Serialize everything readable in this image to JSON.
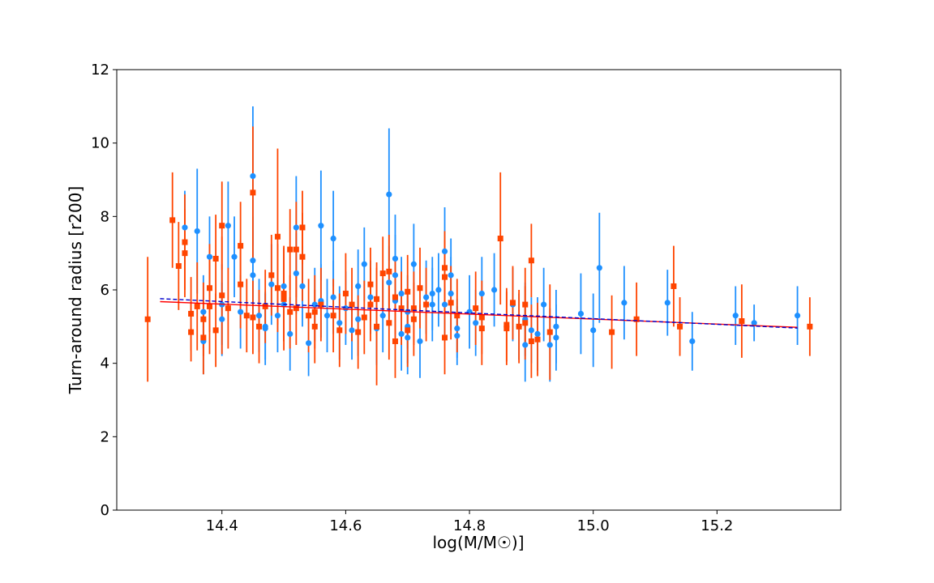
{
  "chart_data": {
    "type": "scatter",
    "title": "",
    "xlabel": "log(M/M☉)]",
    "ylabel": "Turn-around radius [r200]",
    "xlim": [
      14.23,
      15.4
    ],
    "ylim": [
      0,
      12
    ],
    "x_ticks": [
      "14.4",
      "14.6",
      "14.8",
      "15.0",
      "15.2"
    ],
    "y_ticks": [
      "0",
      "2",
      "4",
      "6",
      "8",
      "10",
      "12"
    ],
    "grid": false,
    "legend": "none",
    "series": [
      {
        "color": "#1e90ff",
        "marker": "circle",
        "points": [
          [
            14.34,
            7.7,
            1.0
          ],
          [
            14.36,
            7.6,
            1.7
          ],
          [
            14.37,
            5.4,
            1.0
          ],
          [
            14.37,
            4.6,
            0.9
          ],
          [
            14.38,
            6.9,
            1.1
          ],
          [
            14.4,
            5.6,
            1.1
          ],
          [
            14.4,
            5.2,
            1.0
          ],
          [
            14.41,
            7.75,
            1.2
          ],
          [
            14.42,
            6.9,
            1.1
          ],
          [
            14.43,
            5.4,
            1.0
          ],
          [
            14.45,
            9.1,
            1.9
          ],
          [
            14.45,
            6.8,
            1.2
          ],
          [
            14.45,
            6.4,
            1.2
          ],
          [
            14.46,
            5.3,
            1.0
          ],
          [
            14.47,
            4.95,
            1.0
          ],
          [
            14.47,
            5.0,
            0.9
          ],
          [
            14.48,
            6.15,
            1.1
          ],
          [
            14.49,
            5.3,
            1.0
          ],
          [
            14.5,
            5.6,
            1.0
          ],
          [
            14.5,
            6.1,
            1.0
          ],
          [
            14.51,
            4.8,
            1.0
          ],
          [
            14.52,
            7.7,
            1.4
          ],
          [
            14.52,
            6.45,
            1.1
          ],
          [
            14.53,
            6.1,
            1.1
          ],
          [
            14.54,
            4.55,
            0.9
          ],
          [
            14.55,
            5.6,
            1.0
          ],
          [
            14.56,
            5.7,
            1.0
          ],
          [
            14.56,
            7.75,
            1.5
          ],
          [
            14.57,
            5.3,
            1.0
          ],
          [
            14.58,
            7.4,
            1.3
          ],
          [
            14.58,
            5.8,
            1.0
          ],
          [
            14.59,
            5.1,
            1.0
          ],
          [
            14.6,
            5.5,
            1.0
          ],
          [
            14.61,
            4.9,
            0.8
          ],
          [
            14.62,
            6.1,
            1.0
          ],
          [
            14.62,
            5.2,
            1.0
          ],
          [
            14.63,
            6.7,
            1.0
          ],
          [
            14.64,
            5.8,
            1.0
          ],
          [
            14.65,
            5.0,
            1.0
          ],
          [
            14.65,
            4.95,
            1.0
          ],
          [
            14.66,
            5.3,
            1.0
          ],
          [
            14.67,
            8.6,
            1.8
          ],
          [
            14.67,
            6.2,
            1.0
          ],
          [
            14.68,
            6.4,
            1.1
          ],
          [
            14.68,
            6.85,
            1.2
          ],
          [
            14.68,
            5.7,
            1.0
          ],
          [
            14.69,
            5.9,
            1.0
          ],
          [
            14.69,
            4.8,
            1.0
          ],
          [
            14.7,
            5.4,
            1.0
          ],
          [
            14.7,
            4.7,
            1.0
          ],
          [
            14.7,
            5.0,
            1.0
          ],
          [
            14.71,
            6.7,
            1.1
          ],
          [
            14.72,
            4.6,
            1.0
          ],
          [
            14.73,
            5.8,
            1.0
          ],
          [
            14.74,
            5.9,
            1.0
          ],
          [
            14.74,
            5.6,
            1.0
          ],
          [
            14.75,
            6.0,
            1.0
          ],
          [
            14.76,
            7.05,
            1.2
          ],
          [
            14.76,
            5.6,
            1.0
          ],
          [
            14.77,
            6.4,
            1.0
          ],
          [
            14.77,
            5.9,
            1.0
          ],
          [
            14.78,
            4.75,
            0.8
          ],
          [
            14.78,
            4.95,
            0.8
          ],
          [
            14.8,
            5.4,
            1.0
          ],
          [
            14.81,
            5.1,
            0.9
          ],
          [
            14.82,
            5.9,
            1.0
          ],
          [
            14.84,
            6.0,
            1.0
          ],
          [
            14.87,
            5.6,
            1.0
          ],
          [
            14.88,
            5.0,
            0.9
          ],
          [
            14.89,
            4.5,
            1.0
          ],
          [
            14.89,
            5.2,
            1.0
          ],
          [
            14.9,
            4.9,
            0.9
          ],
          [
            14.91,
            4.8,
            1.0
          ],
          [
            14.92,
            5.6,
            1.0
          ],
          [
            14.93,
            4.5,
            1.0
          ],
          [
            14.94,
            5.0,
            1.0
          ],
          [
            14.94,
            4.7,
            0.9
          ],
          [
            14.98,
            5.35,
            1.1
          ],
          [
            15.0,
            4.9,
            1.0
          ],
          [
            15.01,
            6.6,
            1.5
          ],
          [
            15.05,
            5.65,
            1.0
          ],
          [
            15.12,
            5.65,
            0.9
          ],
          [
            15.16,
            4.6,
            0.8
          ],
          [
            15.23,
            5.3,
            0.8
          ],
          [
            15.26,
            5.1,
            0.5
          ],
          [
            15.33,
            5.3,
            0.8
          ]
        ]
      },
      {
        "color": "#ff4500",
        "marker": "square",
        "points": [
          [
            14.28,
            5.2,
            1.7
          ],
          [
            14.32,
            7.9,
            1.3
          ],
          [
            14.33,
            6.65,
            1.2
          ],
          [
            14.34,
            7.3,
            1.3
          ],
          [
            14.34,
            7.0,
            1.2
          ],
          [
            14.35,
            4.85,
            0.8
          ],
          [
            14.35,
            5.35,
            1.0
          ],
          [
            14.36,
            5.55,
            1.2
          ],
          [
            14.37,
            4.7,
            1.0
          ],
          [
            14.37,
            5.2,
            1.0
          ],
          [
            14.38,
            6.05,
            1.2
          ],
          [
            14.38,
            5.55,
            1.3
          ],
          [
            14.39,
            4.9,
            1.0
          ],
          [
            14.39,
            6.85,
            1.2
          ],
          [
            14.4,
            7.75,
            1.2
          ],
          [
            14.4,
            5.85,
            1.6
          ],
          [
            14.41,
            5.5,
            1.1
          ],
          [
            14.43,
            7.2,
            1.2
          ],
          [
            14.43,
            6.15,
            1.2
          ],
          [
            14.44,
            5.3,
            1.0
          ],
          [
            14.45,
            8.65,
            1.8
          ],
          [
            14.45,
            5.25,
            1.0
          ],
          [
            14.46,
            5.0,
            1.0
          ],
          [
            14.47,
            5.55,
            1.0
          ],
          [
            14.48,
            6.4,
            1.1
          ],
          [
            14.49,
            7.45,
            2.4
          ],
          [
            14.49,
            6.05,
            1.2
          ],
          [
            14.5,
            5.9,
            1.3
          ],
          [
            14.5,
            5.75,
            1.4
          ],
          [
            14.51,
            5.4,
            1.0
          ],
          [
            14.51,
            7.1,
            1.1
          ],
          [
            14.52,
            7.1,
            1.3
          ],
          [
            14.52,
            5.5,
            1.0
          ],
          [
            14.53,
            7.7,
            1.0
          ],
          [
            14.53,
            6.9,
            1.2
          ],
          [
            14.54,
            5.3,
            1.0
          ],
          [
            14.55,
            5.0,
            1.0
          ],
          [
            14.55,
            5.4,
            1.0
          ],
          [
            14.56,
            5.6,
            1.0
          ],
          [
            14.58,
            5.3,
            1.0
          ],
          [
            14.59,
            4.9,
            1.0
          ],
          [
            14.6,
            5.9,
            1.1
          ],
          [
            14.61,
            5.6,
            1.0
          ],
          [
            14.62,
            4.85,
            1.0
          ],
          [
            14.63,
            5.25,
            1.0
          ],
          [
            14.64,
            6.15,
            1.0
          ],
          [
            14.64,
            5.6,
            1.0
          ],
          [
            14.65,
            5.75,
            1.0
          ],
          [
            14.65,
            5.0,
            1.6
          ],
          [
            14.66,
            6.45,
            1.0
          ],
          [
            14.67,
            5.1,
            1.0
          ],
          [
            14.67,
            6.5,
            1.0
          ],
          [
            14.68,
            5.8,
            1.0
          ],
          [
            14.68,
            4.6,
            1.0
          ],
          [
            14.69,
            5.5,
            1.0
          ],
          [
            14.7,
            5.95,
            1.0
          ],
          [
            14.7,
            4.9,
            1.0
          ],
          [
            14.71,
            5.2,
            1.0
          ],
          [
            14.71,
            5.5,
            1.0
          ],
          [
            14.72,
            6.05,
            1.1
          ],
          [
            14.73,
            5.6,
            1.0
          ],
          [
            14.76,
            6.6,
            1.0
          ],
          [
            14.76,
            6.35,
            1.0
          ],
          [
            14.76,
            4.7,
            1.0
          ],
          [
            14.77,
            5.65,
            1.0
          ],
          [
            14.78,
            5.3,
            1.0
          ],
          [
            14.81,
            5.5,
            1.0
          ],
          [
            14.82,
            4.95,
            1.0
          ],
          [
            14.82,
            5.25,
            1.0
          ],
          [
            14.85,
            7.4,
            1.8
          ],
          [
            14.86,
            5.05,
            1.0
          ],
          [
            14.86,
            4.95,
            1.0
          ],
          [
            14.87,
            5.65,
            1.0
          ],
          [
            14.88,
            5.0,
            1.0
          ],
          [
            14.89,
            5.6,
            1.0
          ],
          [
            14.89,
            5.1,
            1.0
          ],
          [
            14.9,
            6.8,
            1.0
          ],
          [
            14.9,
            4.6,
            1.0
          ],
          [
            14.91,
            4.65,
            1.0
          ],
          [
            14.93,
            4.85,
            1.3
          ],
          [
            15.03,
            4.85,
            1.0
          ],
          [
            15.07,
            5.2,
            1.0
          ],
          [
            15.13,
            6.1,
            1.1
          ],
          [
            15.14,
            5.0,
            0.8
          ],
          [
            15.24,
            5.15,
            1.0
          ],
          [
            15.35,
            5.0,
            0.8
          ]
        ]
      }
    ],
    "fit_lines": [
      {
        "color": "#ff0000",
        "style": "solid",
        "x": [
          14.3,
          15.33
        ],
        "y": [
          5.68,
          4.98
        ]
      },
      {
        "color": "#0000cd",
        "style": "dashed",
        "x": [
          14.3,
          15.33
        ],
        "y": [
          5.76,
          4.96
        ]
      }
    ]
  }
}
